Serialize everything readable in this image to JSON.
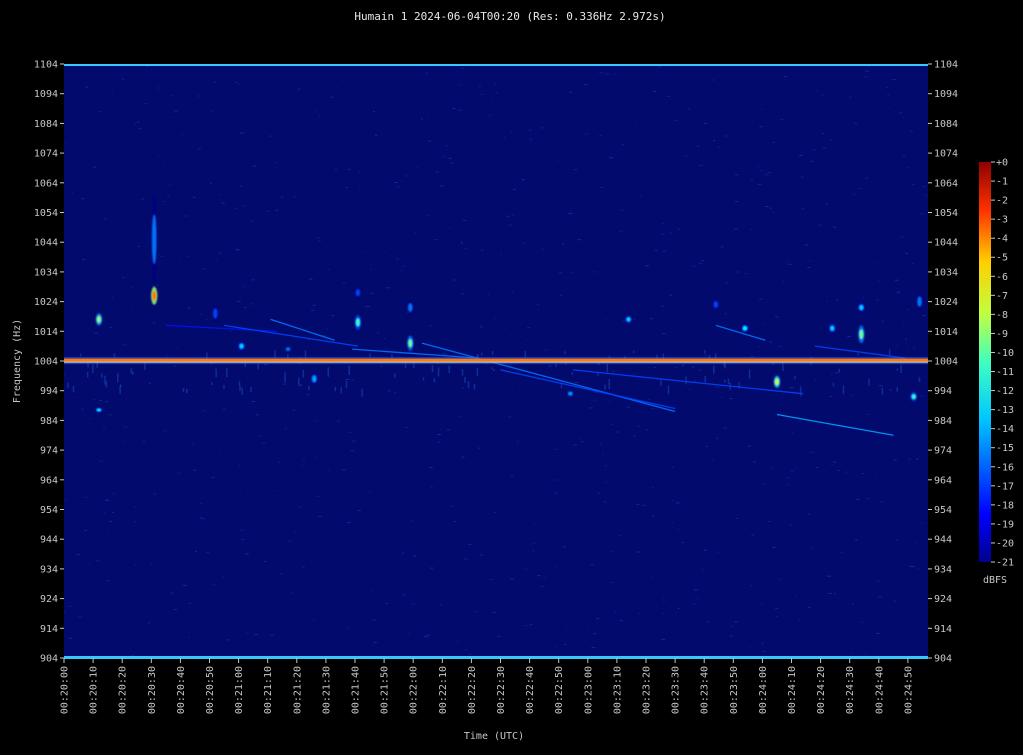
{
  "chart_data": {
    "type": "heatmap",
    "title": "Humain 1 2024-06-04T00:20 (Res: 0.336Hz 2.972s)",
    "xlabel": "Time (UTC)",
    "ylabel": "Frequency (Hz)",
    "ylim": [
      904,
      1104
    ],
    "y_ticks": [
      904,
      914,
      924,
      934,
      944,
      954,
      964,
      974,
      984,
      994,
      1004,
      1014,
      1024,
      1034,
      1044,
      1054,
      1064,
      1074,
      1084,
      1094,
      1104
    ],
    "x_ticks": [
      "00:20:00",
      "00:20:10",
      "00:20:20",
      "00:20:30",
      "00:20:40",
      "00:20:50",
      "00:21:00",
      "00:21:10",
      "00:21:20",
      "00:21:30",
      "00:21:40",
      "00:21:50",
      "00:22:00",
      "00:22:10",
      "00:22:20",
      "00:22:30",
      "00:22:40",
      "00:22:50",
      "00:23:00",
      "00:23:10",
      "00:23:20",
      "00:23:30",
      "00:23:40",
      "00:23:50",
      "00:24:00",
      "00:24:10",
      "00:24:20",
      "00:24:30",
      "00:24:40",
      "00:24:50"
    ],
    "colorbar": {
      "label": "dBFS",
      "ticks": [
        "+0",
        "-1",
        "-2",
        "-3",
        "-4",
        "-5",
        "-6",
        "-7",
        "-8",
        "-9",
        "-10",
        "-11",
        "-12",
        "-13",
        "-14",
        "-15",
        "-16",
        "-17",
        "-18",
        "-19",
        "-20",
        "-21"
      ],
      "range": [
        -21,
        0
      ]
    },
    "colors": {
      "background": "#020a6e",
      "carrier": "#ff7a10",
      "band_edge": "#38c8ff"
    },
    "carrier_hz": 1004.3,
    "echoes": [
      {
        "t": 12,
        "f": 1018,
        "span": 4,
        "db": -10
      },
      {
        "t": 12,
        "f": 987.5,
        "span": 1.5,
        "db": -13
      },
      {
        "t": 31,
        "f": 1026,
        "span": 6,
        "db": -5
      },
      {
        "t": 31,
        "f": 1045,
        "span": 30,
        "db": -16
      },
      {
        "t": 52,
        "f": 1020,
        "span": 6,
        "db": -17
      },
      {
        "t": 61,
        "f": 1009,
        "span": 3,
        "db": -14
      },
      {
        "t": 77,
        "f": 1008,
        "span": 2,
        "db": -16
      },
      {
        "t": 86,
        "f": 998,
        "span": 4,
        "db": -15
      },
      {
        "t": 101,
        "f": 1017,
        "span": 5,
        "db": -12
      },
      {
        "t": 101,
        "f": 1027,
        "span": 4,
        "db": -17
      },
      {
        "t": 119,
        "f": 1010,
        "span": 5,
        "db": -11
      },
      {
        "t": 119,
        "f": 1022,
        "span": 5,
        "db": -16
      },
      {
        "t": 174,
        "f": 993,
        "span": 2,
        "db": -15
      },
      {
        "t": 194,
        "f": 1018,
        "span": 2.5,
        "db": -14
      },
      {
        "t": 224,
        "f": 1023,
        "span": 4,
        "db": -17
      },
      {
        "t": 234,
        "f": 1015,
        "span": 2.5,
        "db": -13
      },
      {
        "t": 245,
        "f": 997,
        "span": 4,
        "db": -9
      },
      {
        "t": 264,
        "f": 1015,
        "span": 3,
        "db": -14
      },
      {
        "t": 274,
        "f": 1013,
        "span": 6,
        "db": -11
      },
      {
        "t": 274,
        "f": 1022,
        "span": 3,
        "db": -14
      },
      {
        "t": 294,
        "f": 1024,
        "span": 6,
        "db": -16
      },
      {
        "t": 292,
        "f": 992,
        "span": 3,
        "db": -12
      }
    ],
    "traces": [
      {
        "t0": 35,
        "f0": 1016,
        "t1": 73,
        "f1": 1014,
        "db": -18
      },
      {
        "t0": 55,
        "f0": 1016,
        "t1": 101,
        "f1": 1009,
        "db": -17
      },
      {
        "t0": 71,
        "f0": 1018,
        "t1": 93,
        "f1": 1011,
        "db": -16
      },
      {
        "t0": 99,
        "f0": 1008,
        "t1": 142,
        "f1": 1005,
        "db": -16
      },
      {
        "t0": 123,
        "f0": 1010,
        "t1": 210,
        "f1": 987,
        "db": -16
      },
      {
        "t0": 150,
        "f0": 1001,
        "t1": 210,
        "f1": 988,
        "db": -17
      },
      {
        "t0": 175,
        "f0": 1001,
        "t1": 254,
        "f1": 993,
        "db": -17
      },
      {
        "t0": 224,
        "f0": 1016,
        "t1": 241,
        "f1": 1011,
        "db": -16
      },
      {
        "t0": 245,
        "f0": 986,
        "t1": 285,
        "f1": 979,
        "db": -15
      },
      {
        "t0": 258,
        "f0": 1009,
        "t1": 289,
        "f1": 1005,
        "db": -17
      }
    ]
  }
}
